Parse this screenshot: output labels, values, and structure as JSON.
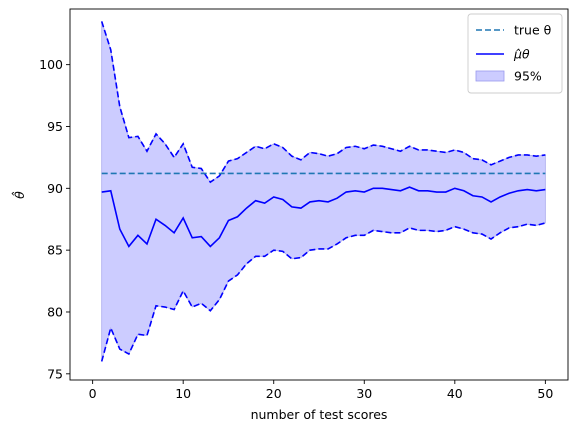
{
  "chart_data": {
    "type": "line",
    "xlabel": "number of test scores",
    "ylabel": "θ̂",
    "xlim": [
      -2.5,
      52.5
    ],
    "ylim": [
      74.5,
      104.5
    ],
    "xticks": [
      0,
      10,
      20,
      30,
      40,
      50
    ],
    "yticks": [
      75,
      80,
      85,
      90,
      95,
      100
    ],
    "grid": false,
    "legend_position": "top-right",
    "legend": [
      {
        "name": "true θ",
        "style": "dashed-line",
        "color": "#1f77b4"
      },
      {
        "name": "μ̂θ",
        "style": "solid-line",
        "color": "#0000ff"
      },
      {
        "name": "95%",
        "style": "filled-patch",
        "color": "#ccccff"
      }
    ],
    "true_theta": 91.2,
    "x": [
      1,
      2,
      3,
      4,
      5,
      6,
      7,
      8,
      9,
      10,
      11,
      12,
      13,
      14,
      15,
      16,
      17,
      18,
      19,
      20,
      21,
      22,
      23,
      24,
      25,
      26,
      27,
      28,
      29,
      30,
      31,
      32,
      33,
      34,
      35,
      36,
      37,
      38,
      39,
      40,
      41,
      42,
      43,
      44,
      45,
      46,
      47,
      48,
      49,
      50
    ],
    "series": [
      {
        "name": "μ̂θ",
        "values": [
          89.7,
          89.8,
          86.7,
          85.3,
          86.2,
          85.5,
          87.5,
          87.0,
          86.4,
          87.6,
          86.0,
          86.1,
          85.3,
          86.0,
          87.4,
          87.7,
          88.4,
          89.0,
          88.8,
          89.3,
          89.1,
          88.5,
          88.4,
          88.9,
          89.0,
          88.9,
          89.2,
          89.7,
          89.8,
          89.7,
          90.0,
          90.0,
          89.9,
          89.8,
          90.1,
          89.8,
          89.8,
          89.7,
          89.7,
          90.0,
          89.8,
          89.4,
          89.3,
          88.9,
          89.3,
          89.6,
          89.8,
          89.9,
          89.8,
          89.9
        ]
      },
      {
        "name": "upper",
        "values": [
          103.5,
          101.2,
          96.6,
          94.1,
          94.2,
          93.0,
          94.4,
          93.6,
          92.5,
          93.6,
          91.7,
          91.6,
          90.5,
          91.0,
          92.2,
          92.4,
          92.9,
          93.4,
          93.2,
          93.6,
          93.3,
          92.6,
          92.3,
          92.9,
          92.8,
          92.6,
          92.8,
          93.3,
          93.4,
          93.2,
          93.5,
          93.4,
          93.2,
          93.0,
          93.4,
          93.1,
          93.1,
          93.0,
          92.9,
          93.1,
          92.9,
          92.4,
          92.3,
          91.9,
          92.2,
          92.5,
          92.7,
          92.7,
          92.6,
          92.7
        ]
      },
      {
        "name": "lower",
        "values": [
          76.0,
          78.7,
          77.0,
          76.6,
          78.2,
          78.1,
          80.5,
          80.4,
          80.2,
          81.7,
          80.4,
          80.7,
          80.1,
          81.0,
          82.5,
          83.0,
          83.9,
          84.5,
          84.5,
          85.0,
          84.9,
          84.3,
          84.4,
          85.0,
          85.1,
          85.1,
          85.5,
          86.0,
          86.2,
          86.2,
          86.6,
          86.5,
          86.4,
          86.4,
          86.8,
          86.6,
          86.6,
          86.5,
          86.6,
          86.9,
          86.7,
          86.4,
          86.3,
          85.9,
          86.4,
          86.8,
          86.9,
          87.1,
          87.0,
          87.2
        ]
      }
    ]
  }
}
